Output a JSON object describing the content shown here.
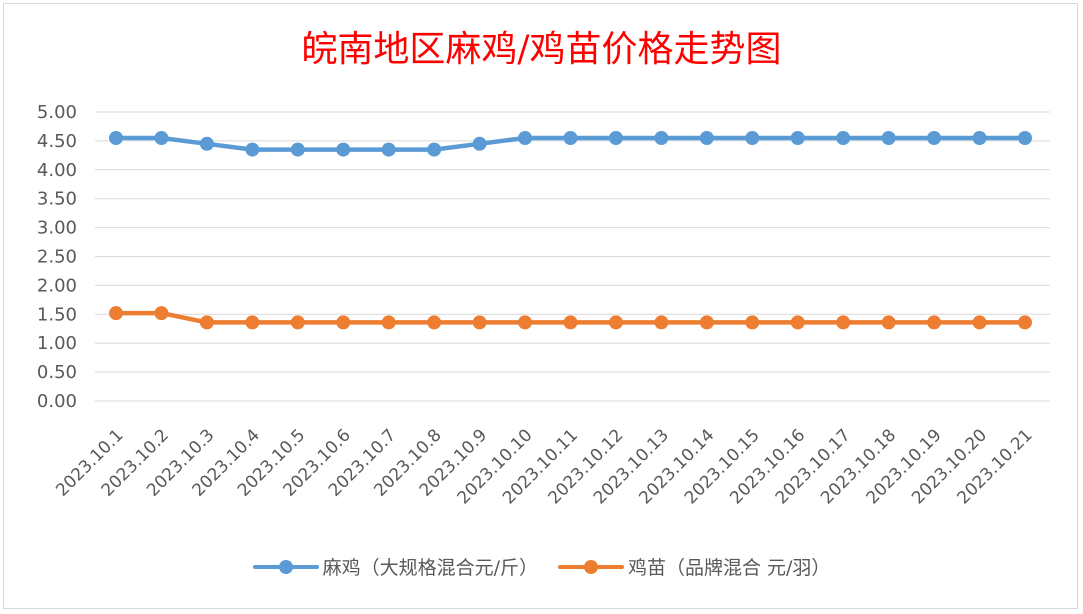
{
  "chart_data": {
    "type": "line",
    "title": "皖南地区麻鸡/鸡苗价格走势图",
    "categories": [
      "2023.10.1",
      "2023.10.2",
      "2023.10.3",
      "2023.10.4",
      "2023.10.5",
      "2023.10.6",
      "2023.10.7",
      "2023.10.8",
      "2023.10.9",
      "2023.10.10",
      "2023.10.11",
      "2023.10.12",
      "2023.10.13",
      "2023.10.14",
      "2023.10.15",
      "2023.10.16",
      "2023.10.17",
      "2023.10.18",
      "2023.10.19",
      "2023.10.20",
      "2023.10.21"
    ],
    "yticks": [
      "0.00",
      "0.50",
      "1.00",
      "1.50",
      "2.00",
      "2.50",
      "3.00",
      "3.50",
      "4.00",
      "4.50",
      "5.00"
    ],
    "ylim": [
      0,
      5
    ],
    "grid": true,
    "legend_position": "bottom",
    "series": [
      {
        "name": "麻鸡（大规格混合元/斤）",
        "color": "#5b9bd5",
        "values": [
          4.55,
          4.55,
          4.45,
          4.35,
          4.35,
          4.35,
          4.35,
          4.35,
          4.45,
          4.55,
          4.55,
          4.55,
          4.55,
          4.55,
          4.55,
          4.55,
          4.55,
          4.55,
          4.55,
          4.55,
          4.55
        ]
      },
      {
        "name": "鸡苗（品牌混合 元/羽）",
        "color": "#ed7d31",
        "values": [
          1.52,
          1.52,
          1.36,
          1.36,
          1.36,
          1.36,
          1.36,
          1.36,
          1.36,
          1.36,
          1.36,
          1.36,
          1.36,
          1.36,
          1.36,
          1.36,
          1.36,
          1.36,
          1.36,
          1.36,
          1.36
        ]
      }
    ]
  }
}
